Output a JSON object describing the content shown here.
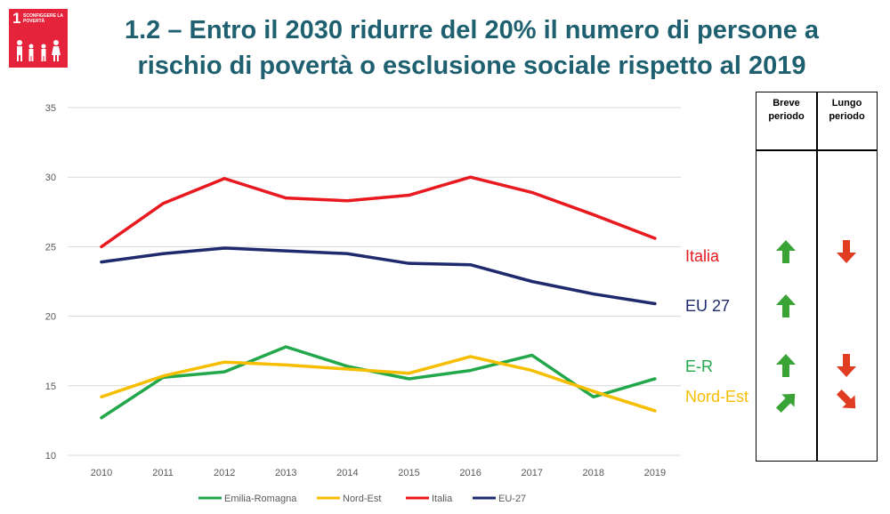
{
  "slide": {
    "title_line1": "1.2 – Entro il 2030 ridurre del 20% il numero di persone a",
    "title_line2": "rischio di povertà o esclusione sociale rispetto al 2019",
    "logo": {
      "number": "1",
      "text": "SCONFIGGERE LA POVERTÀ",
      "icon": "family-icon",
      "color": "#e5243b"
    }
  },
  "chart_data": {
    "type": "line",
    "x": [
      "2010",
      "2011",
      "2012",
      "2013",
      "2014",
      "2015",
      "2016",
      "2017",
      "2018",
      "2019"
    ],
    "ylim": [
      10,
      35
    ],
    "yticks": [
      10,
      15,
      20,
      25,
      30,
      35
    ],
    "grid": true,
    "legend_position": "bottom",
    "series": [
      {
        "name": "Emilia-Romagna",
        "color": "#22a84a",
        "values": [
          12.7,
          15.6,
          16.0,
          17.8,
          16.4,
          15.5,
          16.1,
          17.2,
          14.2,
          15.5
        ]
      },
      {
        "name": "Nord-Est",
        "color": "#f7be00",
        "values": [
          14.2,
          15.7,
          16.7,
          16.5,
          16.2,
          15.9,
          17.1,
          16.1,
          14.6,
          13.2
        ]
      },
      {
        "name": "Italia",
        "color": "#e8191f",
        "values": [
          25.0,
          28.1,
          29.9,
          28.5,
          28.3,
          28.7,
          30.0,
          28.9,
          27.3,
          25.6
        ]
      },
      {
        "name": "EU-27",
        "color": "#1f2a6e",
        "values": [
          23.9,
          24.5,
          24.9,
          24.7,
          24.5,
          23.8,
          23.7,
          22.5,
          21.6,
          20.9
        ]
      }
    ],
    "annotations": [
      {
        "text": "Italia",
        "color": "#e8191f"
      },
      {
        "text": "EU 27",
        "color": "#1f2a6e"
      },
      {
        "text": "E-R",
        "color": "#22a84a"
      },
      {
        "text": "Nord-Est",
        "color": "#f7be00"
      }
    ]
  },
  "trend_table": {
    "headers": {
      "short_line1": "Breve",
      "short_line2": "periodo",
      "long_line1": "Lungo",
      "long_line2": "periodo"
    },
    "rows": [
      {
        "label": "Italia",
        "short": "up-arrow-icon",
        "long": "down-arrow-icon"
      },
      {
        "label": "EU 27",
        "short": "up-arrow-icon",
        "long": ""
      },
      {
        "label": "E-R",
        "short": "up-arrow-icon",
        "long": "down-arrow-icon"
      },
      {
        "label": "Nord-Est",
        "short": "up-right-arrow-icon",
        "long": "down-right-arrow-icon"
      }
    ],
    "colors": {
      "positive": "#3aa335",
      "negative": "#e03c22"
    }
  }
}
